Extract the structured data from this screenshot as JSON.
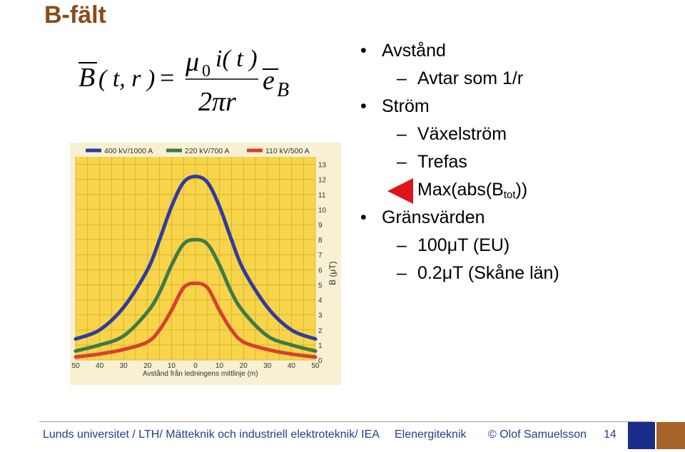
{
  "slide": {
    "title": "B-fält",
    "page_number": "14"
  },
  "formula": {
    "lhs_symbol": "B",
    "lhs_args": "( t, r )",
    "equals": "=",
    "numerator_mu": "μ",
    "numerator_sub": "0",
    "numerator_rest": "i( t )",
    "denominator": "2πr",
    "unit_vector": "e",
    "unit_vector_sub": "B"
  },
  "bullets": [
    {
      "text": "Avstånd",
      "sub": [
        {
          "text": "Avtar som 1/r"
        }
      ]
    },
    {
      "text": "Ström",
      "sub": [
        {
          "text": "Växelström"
        },
        {
          "text": "Trefas"
        },
        {
          "text_prefix": "Max(abs(B",
          "text_sub": "tot",
          "text_suffix": "))",
          "marker": "red-triangle-pointer"
        }
      ]
    },
    {
      "text": "Gränsvärden",
      "sub": [
        {
          "text": "100μT (EU)"
        },
        {
          "text": "0.2μT (Skåne län)"
        }
      ]
    }
  ],
  "footer": {
    "institution": "Lunds universitet / LTH/ Mätteknik och industriell elektroteknik/ IEA",
    "course": "Elenergiteknik",
    "author": "© Olof Samuelsson"
  },
  "colors": {
    "title": "#8b4a18",
    "footer_text": "#1f3f8f",
    "square_blue": "#1a2d8a",
    "square_brown": "#a8632a",
    "pointer": "#e0121b"
  },
  "chart_data": {
    "type": "line",
    "xlabel": "Avstånd från ledningens mittlinje (m)",
    "ylabel": "B (μT)",
    "x_tick_labels": [
      "50",
      "40",
      "30",
      "20",
      "10",
      "0",
      "10",
      "20",
      "30",
      "40",
      "50"
    ],
    "y_tick_labels": [
      "0",
      "1",
      "2",
      "3",
      "4",
      "5",
      "6",
      "7",
      "8",
      "9",
      "10",
      "11",
      "12",
      "13"
    ],
    "xlim": [
      -50,
      50
    ],
    "ylim": [
      0,
      13.5
    ],
    "grid": true,
    "legend_position": "top",
    "series": [
      {
        "name": "400 kV/1000 A",
        "color": "#2f3c9e",
        "x": [
          -50,
          -40,
          -30,
          -20,
          -15,
          -10,
          -5,
          0,
          5,
          10,
          15,
          20,
          30,
          40,
          50
        ],
        "y": [
          1.4,
          2.0,
          3.5,
          6.0,
          8.0,
          10.2,
          11.8,
          12.2,
          11.8,
          10.2,
          8.0,
          6.0,
          3.5,
          2.0,
          1.4
        ]
      },
      {
        "name": "220 kV/700 A",
        "color": "#3d7a47",
        "x": [
          -50,
          -40,
          -30,
          -20,
          -15,
          -10,
          -5,
          0,
          5,
          10,
          15,
          20,
          30,
          40,
          50
        ],
        "y": [
          0.6,
          1.0,
          1.6,
          3.2,
          4.5,
          6.3,
          7.7,
          8.0,
          7.7,
          6.3,
          4.5,
          3.2,
          1.6,
          1.0,
          0.6
        ]
      },
      {
        "name": "110 kV/500 A",
        "color": "#d64030",
        "x": [
          -50,
          -40,
          -30,
          -20,
          -15,
          -10,
          -5,
          0,
          5,
          10,
          15,
          20,
          30,
          40,
          50
        ],
        "y": [
          0.2,
          0.4,
          0.7,
          1.2,
          2.0,
          3.3,
          4.8,
          5.1,
          4.8,
          3.3,
          2.0,
          1.2,
          0.7,
          0.4,
          0.2
        ]
      }
    ]
  }
}
